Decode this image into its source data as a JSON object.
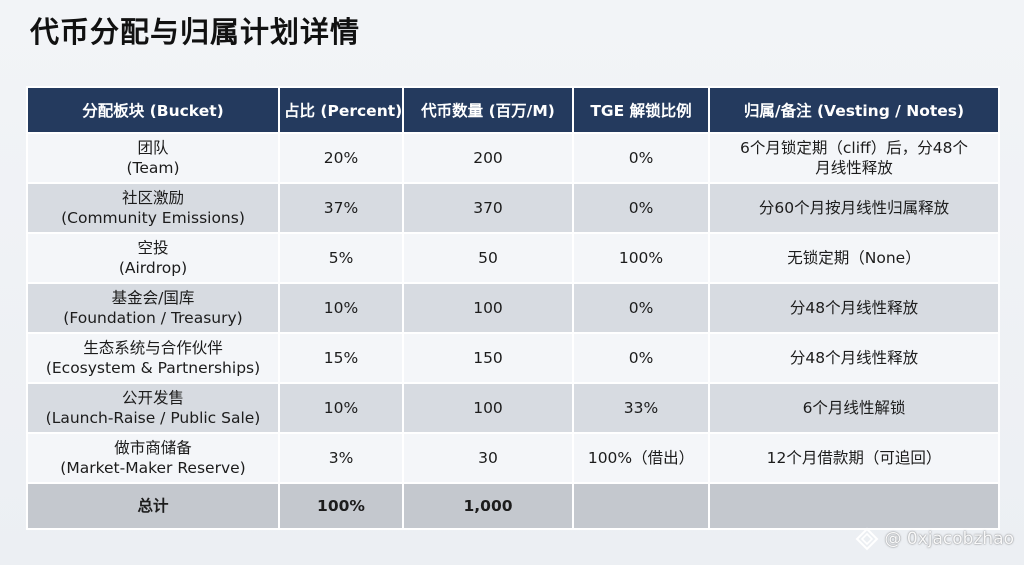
{
  "title": "代币分配与归属计划详情",
  "table": {
    "headers": [
      "分配板块 (Bucket)",
      "占比 (Percent)",
      "代币数量 (百万/M)",
      "TGE 解锁比例",
      "归属/备注 (Vesting / Notes)"
    ],
    "rows": [
      {
        "bucket_cn": "团队",
        "bucket_en": "(Team)",
        "percent": "20%",
        "amount": "200",
        "tge": "0%",
        "vesting_l1": "6个月锁定期（cliff）后，分48个",
        "vesting_l2": "月线性释放"
      },
      {
        "bucket_cn": "社区激励",
        "bucket_en": "(Community Emissions)",
        "percent": "37%",
        "amount": "370",
        "tge": "0%",
        "vesting_l1": "分60个月按月线性归属释放",
        "vesting_l2": ""
      },
      {
        "bucket_cn": "空投",
        "bucket_en": "(Airdrop)",
        "percent": "5%",
        "amount": "50",
        "tge": "100%",
        "vesting_l1": "无锁定期（None）",
        "vesting_l2": ""
      },
      {
        "bucket_cn": "基金会/国库",
        "bucket_en": "(Foundation / Treasury)",
        "percent": "10%",
        "amount": "100",
        "tge": "0%",
        "vesting_l1": "分48个月线性释放",
        "vesting_l2": ""
      },
      {
        "bucket_cn": "生态系统与合作伙伴",
        "bucket_en": "(Ecosystem & Partnerships)",
        "percent": "15%",
        "amount": "150",
        "tge": "0%",
        "vesting_l1": "分48个月线性释放",
        "vesting_l2": ""
      },
      {
        "bucket_cn": "公开发售",
        "bucket_en": "(Launch-Raise / Public Sale)",
        "percent": "10%",
        "amount": "100",
        "tge": "33%",
        "vesting_l1": "6个月线性解锁",
        "vesting_l2": ""
      },
      {
        "bucket_cn": "做市商储备",
        "bucket_en": "(Market-Maker Reserve)",
        "percent": "3%",
        "amount": "30",
        "tge": "100%（借出）",
        "vesting_l1": "12个月借款期（可追回）",
        "vesting_l2": ""
      }
    ],
    "total": {
      "label": "总计",
      "percent": "100%",
      "amount": "1,000",
      "tge": "",
      "vesting": ""
    }
  },
  "watermark": {
    "text": "@ 0xjacobzhao",
    "icon": "diamond-logo-icon"
  },
  "colors": {
    "header_bg": "#243a5e",
    "header_text": "#ffffff",
    "row_light": "#f4f6f9",
    "row_dark": "#d7dbe1",
    "total_bg": "#c4c8ce"
  }
}
